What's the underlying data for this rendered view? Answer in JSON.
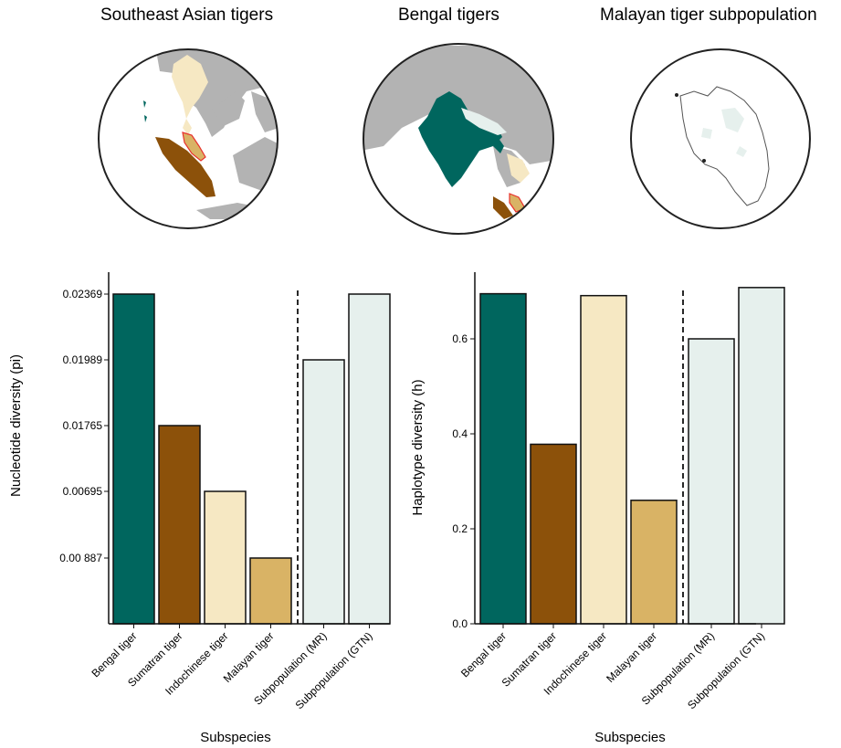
{
  "maps": [
    {
      "title": "Southeast Asian tigers"
    },
    {
      "title": "Bengal tigers"
    },
    {
      "title": "Malayan tiger subpopulation"
    }
  ],
  "colors": {
    "bengal": "#00665e",
    "sumatran": "#8c510a",
    "indochinese": "#f6e8c3",
    "malayan": "#d9b365",
    "subpop_mr": "#e6f0ed",
    "subpop_gtn": "#e6f0ed",
    "land": "#b3b3b3",
    "boundary": "#e8322d"
  },
  "chart_data": [
    {
      "type": "bar",
      "categories": [
        "Bengal tiger",
        "Sumatran tiger",
        "Indochinese tiger",
        "Malayan tiger",
        "Subpopulation (MR)",
        "Subpopulation (GTN)"
      ],
      "values": [
        0.02369,
        0.01765,
        0.00695,
        0.00887,
        0.01989,
        0.02369
      ],
      "display_ranks": [
        5,
        3,
        2,
        1,
        4,
        5
      ],
      "yticks": [
        "0.00 887",
        "0.00695",
        "0.01765",
        "0.01989",
        "0.02369"
      ],
      "xlabel": "Subspecies",
      "ylabel": "Nucleotide diversity (pi)",
      "divider_after": 4
    },
    {
      "type": "bar",
      "categories": [
        "Bengal tiger",
        "Sumatran tiger",
        "Indochinese tiger",
        "Malayan tiger",
        "Subpopulation (MR)",
        "Subpopulation (GTN)"
      ],
      "values": [
        0.695,
        0.378,
        0.691,
        0.26,
        0.6,
        0.708
      ],
      "yticks": [
        "0.0",
        "0.2",
        "0.4",
        "0.6"
      ],
      "ylim": [
        0,
        0.71
      ],
      "xlabel": "Subspecies",
      "ylabel": "Haplotype diversity (h)",
      "divider_after": 4
    }
  ]
}
